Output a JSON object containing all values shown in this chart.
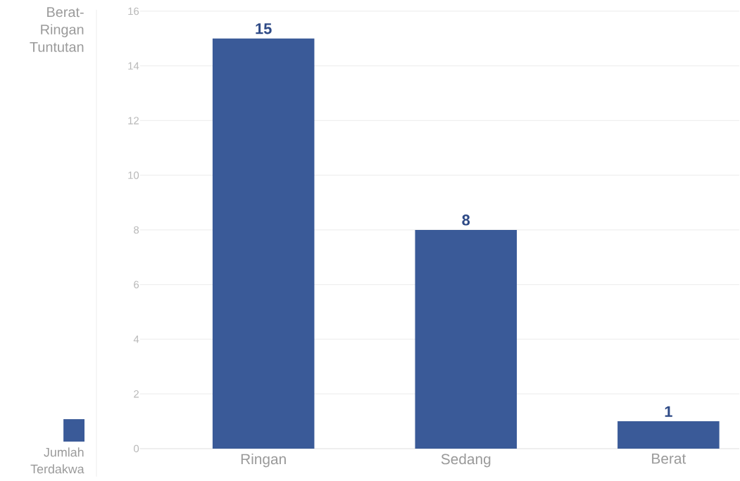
{
  "chart_data": {
    "type": "bar",
    "title": "Berat-Ringan Tuntutan",
    "categories": [
      "Ringan",
      "Sedang",
      "Berat"
    ],
    "series": [
      {
        "name": "Jumlah Terdakwa",
        "color": "#3a5a98",
        "values": [
          15,
          8,
          1
        ]
      }
    ],
    "ylim": [
      0,
      16
    ],
    "yticks": [
      0,
      2,
      4,
      6,
      8,
      10,
      12,
      14,
      16
    ],
    "grid": "y",
    "legend": "left",
    "data_labels": true
  }
}
